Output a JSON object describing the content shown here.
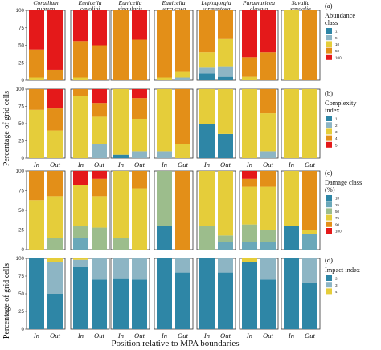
{
  "figure": {
    "y_axis_label": "Percentage of grid cells",
    "x_axis_label": "Position relative to MPA boundaries",
    "y_ticks": [
      "0",
      "25",
      "50",
      "75",
      "100"
    ]
  },
  "chart_data": [
    {
      "type": "bar",
      "stacked": true,
      "panel": "(a)",
      "legend_title": "Abundance class",
      "legend": [
        {
          "label": "1",
          "color": "#2e86a6"
        },
        {
          "label": "5",
          "color": "#8db5c4"
        },
        {
          "label": "10",
          "color": "#e5cd3a"
        },
        {
          "label": "50",
          "color": "#e38f18"
        },
        {
          "label": "100",
          "color": "#e4191a"
        }
      ],
      "facets": [
        "Corallium rubrum",
        "Eunicella cavolini",
        "Eunicella singularis",
        "Eunicella verrucosa",
        "Leptogorgia sarmentosa",
        "Paramuricea clavata",
        "Savalia savaglia"
      ],
      "categories": [
        "In",
        "Out"
      ],
      "ylim": [
        0,
        100
      ],
      "values": [
        [
          [
            0,
            0,
            4,
            40,
            56
          ],
          [
            0,
            0,
            0,
            15,
            85
          ]
        ],
        [
          [
            0,
            0,
            4,
            52,
            44
          ],
          [
            0,
            0,
            0,
            50,
            50
          ]
        ],
        [
          [
            0,
            0,
            0,
            100,
            0
          ],
          [
            0,
            0,
            0,
            58,
            42
          ]
        ],
        [
          [
            0,
            0,
            4,
            96,
            0
          ],
          [
            0,
            4,
            8,
            88,
            0
          ]
        ],
        [
          [
            10,
            8,
            22,
            60,
            0
          ],
          [
            5,
            15,
            40,
            40,
            0
          ]
        ],
        [
          [
            0,
            0,
            5,
            28,
            67
          ],
          [
            0,
            0,
            0,
            40,
            60
          ]
        ],
        [
          [
            0,
            0,
            100,
            0,
            0
          ],
          [
            0,
            0,
            0,
            100,
            0
          ]
        ]
      ]
    },
    {
      "type": "bar",
      "stacked": true,
      "panel": "(b)",
      "legend_title": "Complexity index",
      "legend": [
        {
          "label": "1",
          "color": "#2e86a6"
        },
        {
          "label": "2",
          "color": "#8db5c4"
        },
        {
          "label": "3",
          "color": "#e5cd3a"
        },
        {
          "label": "4",
          "color": "#e38f18"
        },
        {
          "label": "5",
          "color": "#e4191a"
        }
      ],
      "facets": [
        "Corallium rubrum",
        "Eunicella cavolini",
        "Eunicella singularis",
        "Eunicella verrucosa",
        "Leptogorgia sarmentosa",
        "Paramuricea clavata",
        "Savalia savaglia"
      ],
      "categories": [
        "In",
        "Out"
      ],
      "ylim": [
        0,
        100
      ],
      "values": [
        [
          [
            0,
            0,
            70,
            30,
            0
          ],
          [
            0,
            0,
            40,
            32,
            28
          ]
        ],
        [
          [
            0,
            0,
            90,
            10,
            0
          ],
          [
            0,
            20,
            40,
            20,
            20
          ]
        ],
        [
          [
            5,
            0,
            95,
            0,
            0
          ],
          [
            0,
            10,
            47,
            30,
            13
          ]
        ],
        [
          [
            0,
            10,
            90,
            0,
            0
          ],
          [
            0,
            0,
            20,
            80,
            0
          ]
        ],
        [
          [
            50,
            0,
            50,
            0,
            0
          ],
          [
            35,
            0,
            65,
            0,
            0
          ]
        ],
        [
          [
            0,
            0,
            100,
            0,
            0
          ],
          [
            0,
            10,
            55,
            35,
            0
          ]
        ],
        [
          [
            0,
            0,
            100,
            0,
            0
          ],
          [
            0,
            0,
            100,
            0,
            0
          ]
        ]
      ]
    },
    {
      "type": "bar",
      "stacked": true,
      "panel": "(c)",
      "legend_title": "Damage class (%)",
      "legend": [
        {
          "label": "10",
          "color": "#2e86a6"
        },
        {
          "label": "25",
          "color": "#6aa8b9"
        },
        {
          "label": "50",
          "color": "#9cbd8c"
        },
        {
          "label": "75",
          "color": "#e5cd3a"
        },
        {
          "label": "90",
          "color": "#e38f18"
        },
        {
          "label": "100",
          "color": "#e4191a"
        }
      ],
      "facets": [
        "Corallium rubrum",
        "Eunicella cavolini",
        "Eunicella singularis",
        "Eunicella verrucosa",
        "Leptogorgia sarmentosa",
        "Paramuricea clavata",
        "Savalia savaglia"
      ],
      "categories": [
        "In",
        "Out"
      ],
      "ylim": [
        0,
        100
      ],
      "values": [
        [
          [
            0,
            0,
            0,
            63,
            37,
            0
          ],
          [
            0,
            0,
            15,
            53,
            32,
            0
          ]
        ],
        [
          [
            0,
            15,
            15,
            52,
            0,
            18
          ],
          [
            0,
            0,
            28,
            40,
            22,
            10
          ]
        ],
        [
          [
            0,
            0,
            15,
            85,
            0,
            0
          ],
          [
            0,
            0,
            0,
            78,
            22,
            0
          ]
        ],
        [
          [
            30,
            0,
            70,
            0,
            0,
            0
          ],
          [
            0,
            0,
            0,
            0,
            100,
            0
          ]
        ],
        [
          [
            0,
            0,
            30,
            70,
            0,
            0
          ],
          [
            0,
            10,
            8,
            82,
            0,
            0
          ]
        ],
        [
          [
            0,
            10,
            22,
            48,
            10,
            10
          ],
          [
            0,
            10,
            15,
            55,
            20,
            0
          ]
        ],
        [
          [
            30,
            0,
            0,
            70,
            0,
            0
          ],
          [
            0,
            20,
            0,
            5,
            75,
            0
          ]
        ]
      ]
    },
    {
      "type": "bar",
      "stacked": true,
      "panel": "(d)",
      "legend_title": "Impact index",
      "legend": [
        {
          "label": "2",
          "color": "#2e86a6"
        },
        {
          "label": "3",
          "color": "#8db5c4"
        },
        {
          "label": "4",
          "color": "#e5cd3a"
        }
      ],
      "facets": [
        "Corallium rubrum",
        "Eunicella cavolini",
        "Eunicella singularis",
        "Eunicella verrucosa",
        "Leptogorgia sarmentosa",
        "Paramuricea clavata",
        "Savalia savaglia"
      ],
      "categories": [
        "In",
        "Out"
      ],
      "ylim": [
        0,
        100
      ],
      "values": [
        [
          [
            100,
            0,
            0
          ],
          [
            50,
            45,
            5
          ]
        ],
        [
          [
            88,
            10,
            2
          ],
          [
            70,
            30,
            0
          ]
        ],
        [
          [
            72,
            28,
            0
          ],
          [
            70,
            30,
            0
          ]
        ],
        [
          [
            100,
            0,
            0
          ],
          [
            80,
            20,
            0
          ]
        ],
        [
          [
            100,
            0,
            0
          ],
          [
            80,
            20,
            0
          ]
        ],
        [
          [
            95,
            0,
            5
          ],
          [
            70,
            30,
            0
          ]
        ],
        [
          [
            100,
            0,
            0
          ],
          [
            65,
            35,
            0
          ]
        ]
      ]
    }
  ]
}
